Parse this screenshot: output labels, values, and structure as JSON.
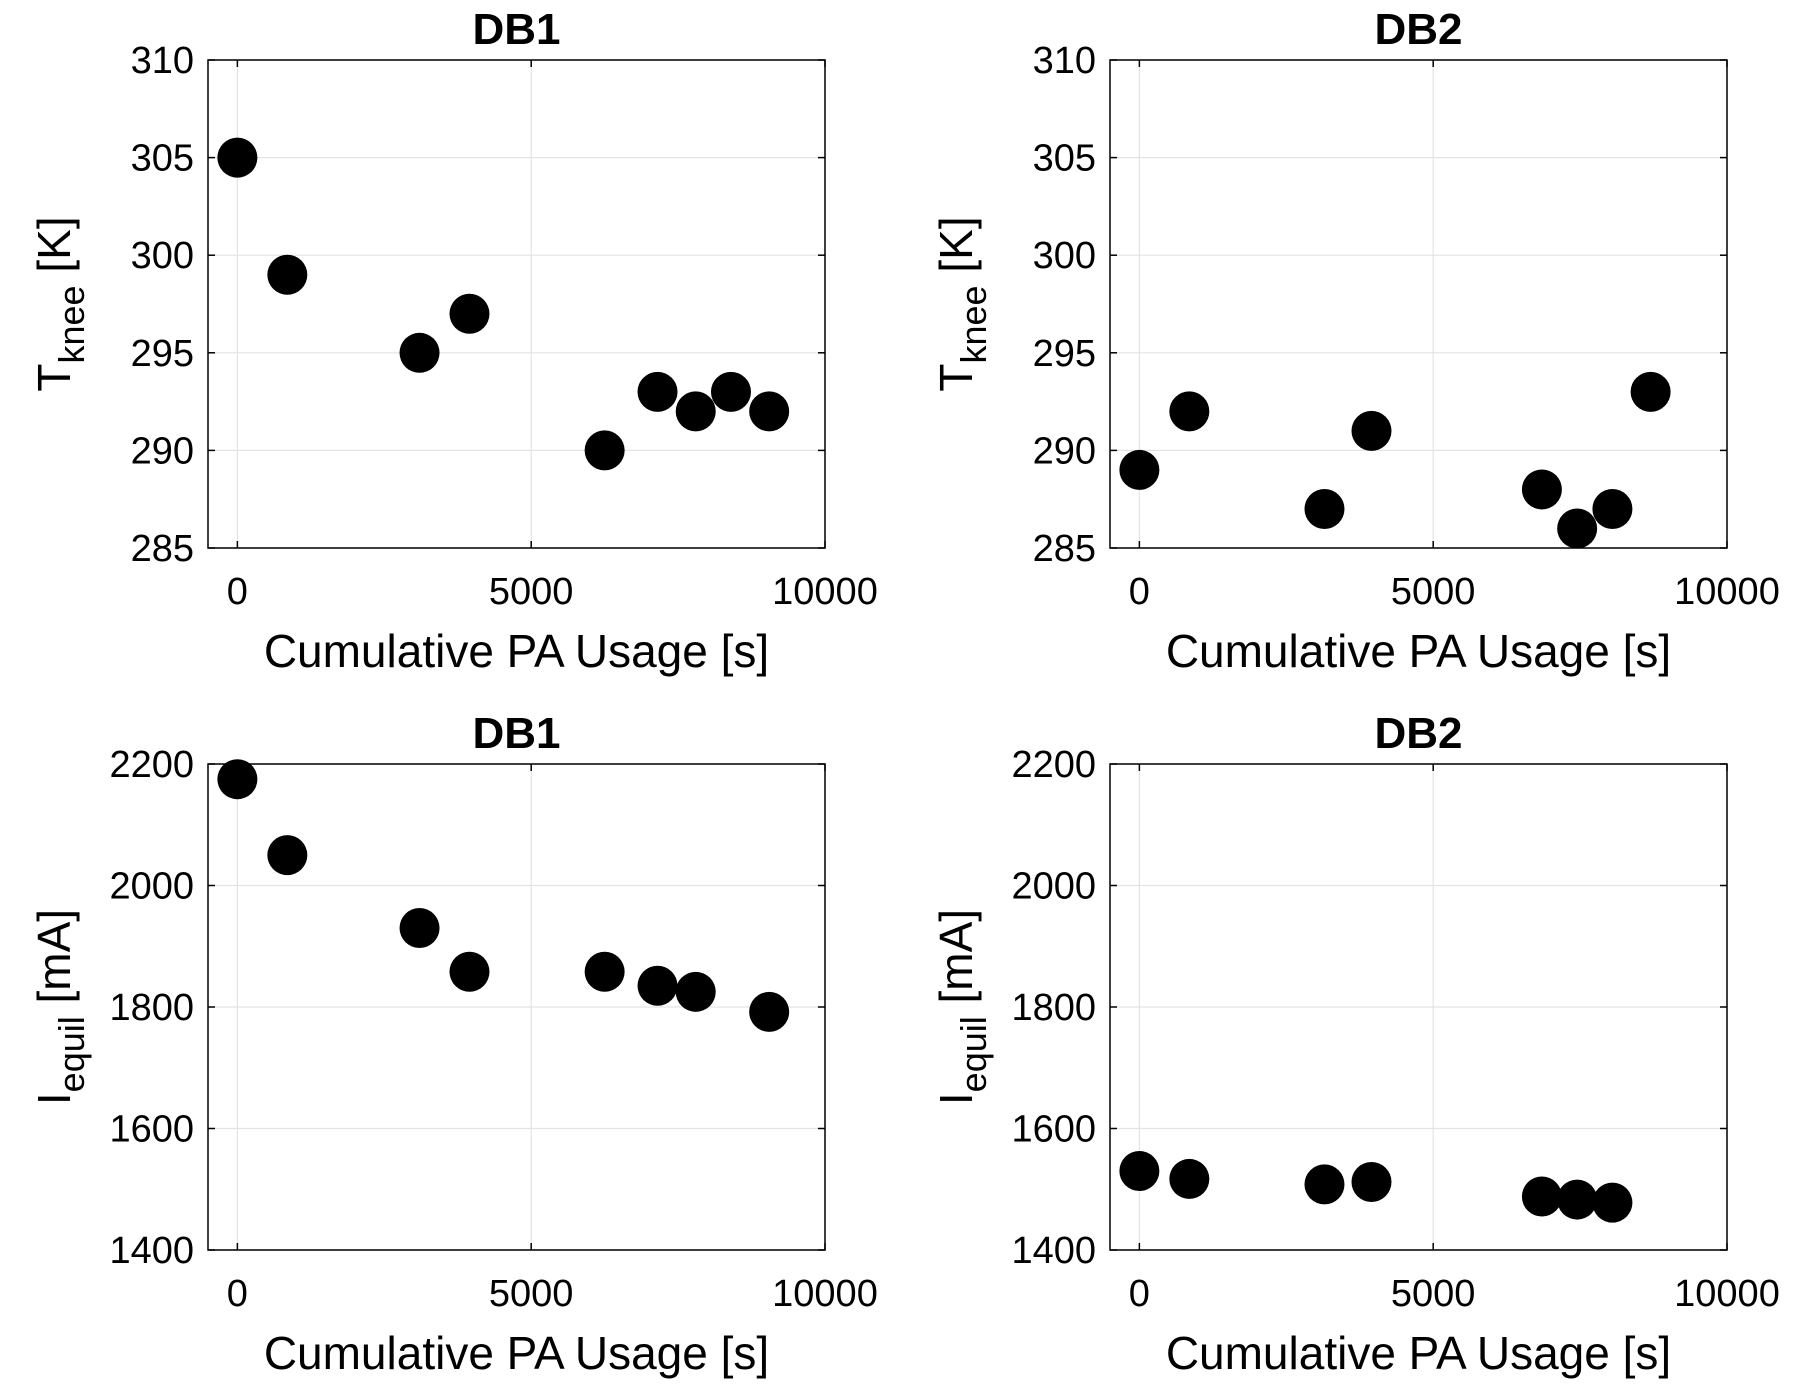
{
  "chart_data": [
    {
      "type": "scatter",
      "title": "DB1",
      "xlabel": "Cumulative PA Usage [s]",
      "ylabel": {
        "main": "T",
        "sub": "knee",
        "unit": " [K]"
      },
      "xlim": [
        -500,
        10000
      ],
      "ylim": [
        285,
        310
      ],
      "xticks": [
        0,
        5000,
        10000
      ],
      "xtick_labels": [
        "0",
        "5000",
        "10000"
      ],
      "yticks": [
        285,
        290,
        295,
        300,
        305,
        310
      ],
      "ytick_labels": [
        "285",
        "290",
        "295",
        "300",
        "305",
        "310"
      ],
      "grid": true,
      "series": [
        {
          "name": "DB1",
          "x": [
            0,
            850,
            3100,
            3950,
            6250,
            7150,
            7800,
            8400,
            9050
          ],
          "y": [
            305,
            299,
            295,
            297,
            290,
            293,
            292,
            293,
            292
          ]
        }
      ]
    },
    {
      "type": "scatter",
      "title": "DB2",
      "xlabel": "Cumulative PA Usage [s]",
      "ylabel": {
        "main": "T",
        "sub": "knee",
        "unit": " [K]"
      },
      "xlim": [
        -500,
        10000
      ],
      "ylim": [
        285,
        310
      ],
      "xticks": [
        0,
        5000,
        10000
      ],
      "xtick_labels": [
        "0",
        "5000",
        "10000"
      ],
      "yticks": [
        285,
        290,
        295,
        300,
        305,
        310
      ],
      "ytick_labels": [
        "285",
        "290",
        "295",
        "300",
        "305",
        "310"
      ],
      "grid": true,
      "series": [
        {
          "name": "DB2",
          "x": [
            0,
            850,
            3150,
            3950,
            6850,
            7450,
            8050,
            8700
          ],
          "y": [
            289,
            292,
            287,
            291,
            288,
            286,
            287,
            293
          ]
        }
      ]
    },
    {
      "type": "scatter",
      "title": "DB1",
      "xlabel": "Cumulative PA Usage [s]",
      "ylabel": {
        "main": "I",
        "sub": "equil",
        "unit": " [mA]"
      },
      "xlim": [
        -500,
        10000
      ],
      "ylim": [
        1400,
        2200
      ],
      "xticks": [
        0,
        5000,
        10000
      ],
      "xtick_labels": [
        "0",
        "5000",
        "10000"
      ],
      "yticks": [
        1400,
        1600,
        1800,
        2000,
        2200
      ],
      "ytick_labels": [
        "1400",
        "1600",
        "1800",
        "2000",
        "2200"
      ],
      "grid": true,
      "series": [
        {
          "name": "DB1",
          "x": [
            0,
            850,
            3100,
            3950,
            6250,
            7150,
            7800,
            9050
          ],
          "y": [
            2175,
            2050,
            1930,
            1858,
            1858,
            1835,
            1825,
            1792
          ]
        }
      ]
    },
    {
      "type": "scatter",
      "title": "DB2",
      "xlabel": "Cumulative PA Usage [s]",
      "ylabel": {
        "main": "I",
        "sub": "equil",
        "unit": " [mA]"
      },
      "xlim": [
        -500,
        10000
      ],
      "ylim": [
        1400,
        2200
      ],
      "xticks": [
        0,
        5000,
        10000
      ],
      "xtick_labels": [
        "0",
        "5000",
        "10000"
      ],
      "yticks": [
        1400,
        1600,
        1800,
        2000,
        2200
      ],
      "ytick_labels": [
        "1400",
        "1600",
        "1800",
        "2000",
        "2200"
      ],
      "grid": true,
      "series": [
        {
          "name": "DB2",
          "x": [
            0,
            850,
            3150,
            3950,
            6850,
            7450,
            8050
          ],
          "y": [
            1530,
            1517,
            1508,
            1512,
            1488,
            1483,
            1478
          ]
        }
      ]
    }
  ]
}
